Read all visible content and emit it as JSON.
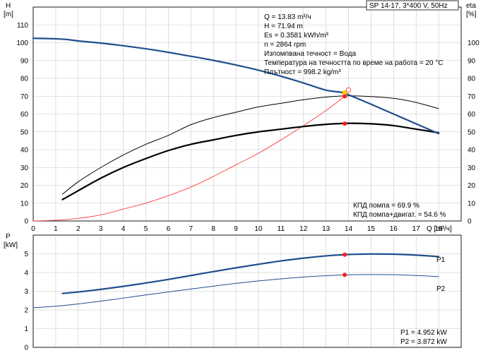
{
  "header": {
    "pump_label": "SP 14-17, 3*400 V, 50Hz"
  },
  "info": {
    "lines": [
      "Q = 13.83 m³/ч",
      "H = 71.94 m",
      "Es = 0.3581 kWh/m³",
      "n = 2864 rpm",
      "Изпомпвана течност = Вода",
      "Температура на течността по време на работа = 20 °C",
      "Плътност = 998.2 kg/m³"
    ]
  },
  "efficiency_notes": {
    "pump": "КПД помпа = 69.9 %",
    "pump_motor": "КПД помпа+двигат. = 54.6 %"
  },
  "power_notes": {
    "p1": "P1 = 4.952 kW",
    "p2": "P2 = 3.872 kW"
  },
  "chart_data": [
    {
      "type": "line",
      "xlabel": "Q [m³/ч]",
      "ylabel": "H\n[m]",
      "y2label": "eta\n[%]",
      "xlim": [
        0,
        19
      ],
      "ylim": [
        0,
        120
      ],
      "y2lim": [
        0,
        120
      ],
      "xticks": [
        0,
        1,
        2,
        3,
        4,
        5,
        6,
        7,
        8,
        9,
        10,
        11,
        12,
        13,
        14,
        15,
        16,
        17,
        18
      ],
      "yticks": [
        0,
        10,
        20,
        30,
        40,
        50,
        60,
        70,
        80,
        90,
        100,
        110
      ],
      "y2ticks": [
        0,
        10,
        20,
        30,
        40,
        50,
        60,
        70,
        80,
        90,
        100
      ],
      "grid": true,
      "series": [
        {
          "id": "h",
          "axis": "left",
          "color": "#1f4e8c",
          "width": 2.2,
          "x": [
            0,
            1.3,
            2,
            3,
            4,
            5,
            6,
            7,
            8,
            9,
            10,
            11,
            12,
            13,
            13.83,
            14,
            15,
            16,
            17,
            18
          ],
          "y": [
            102.5,
            102,
            101,
            99.8,
            98.3,
            96.6,
            94.6,
            92.4,
            90.1,
            87.5,
            84.6,
            81.2,
            77.4,
            73.4,
            71.94,
            70.8,
            65.5,
            60,
            54.5,
            49
          ]
        },
        {
          "id": "eta-pump",
          "axis": "right",
          "color": "#000000",
          "width": 1,
          "x": [
            1.3,
            2,
            3,
            4,
            5,
            6,
            7,
            8,
            9,
            10,
            11,
            12,
            13,
            14,
            15,
            16,
            17,
            18
          ],
          "y": [
            15,
            22,
            30,
            37,
            43,
            48,
            54,
            58,
            61,
            64,
            66,
            68,
            69.5,
            70.2,
            69.8,
            68.8,
            66.5,
            63
          ]
        },
        {
          "id": "eta-total",
          "axis": "right",
          "color": "#000000",
          "width": 2.2,
          "x": [
            1.3,
            2,
            3,
            4,
            5,
            6,
            7,
            8,
            9,
            10,
            11,
            12,
            13,
            14,
            15,
            16,
            17,
            18
          ],
          "y": [
            12,
            17,
            24,
            30,
            35,
            39.5,
            43,
            45.5,
            48,
            50,
            51.5,
            53,
            54.2,
            54.8,
            54.5,
            53.5,
            51.5,
            49.5
          ]
        },
        {
          "id": "system",
          "axis": "left",
          "color": "#ff2020",
          "width": 0.8,
          "x": [
            0,
            1,
            2,
            3,
            4,
            5,
            6,
            7,
            8,
            9,
            10,
            11,
            12,
            13,
            13.83
          ],
          "y": [
            0,
            0.4,
            1.5,
            3.4,
            6.7,
            10,
            14.2,
            19,
            25,
            31.5,
            38,
            45.5,
            53.5,
            62,
            70
          ]
        }
      ],
      "operating_point": {
        "x": 13.83,
        "h": 71.94,
        "eta_pump": 69.9,
        "eta_total": 54.6
      },
      "hollow_point": {
        "x": 14.0,
        "h": 73.5
      }
    },
    {
      "type": "line",
      "xlabel": "",
      "ylabel": "P\n[kW]",
      "xlim": [
        0,
        19
      ],
      "ylim": [
        0,
        6
      ],
      "yticks": [
        0,
        1,
        2,
        3,
        4,
        5
      ],
      "grid": true,
      "series": [
        {
          "id": "p1",
          "name": "P1",
          "color": "#1f4e8c",
          "width": 2.2,
          "x": [
            1.3,
            2,
            3,
            4,
            5,
            6,
            7,
            8,
            9,
            10,
            11,
            12,
            13,
            13.83,
            15,
            16,
            17,
            18
          ],
          "y": [
            2.88,
            2.96,
            3.1,
            3.26,
            3.44,
            3.63,
            3.84,
            4.05,
            4.25,
            4.44,
            4.62,
            4.77,
            4.89,
            4.952,
            4.99,
            4.98,
            4.93,
            4.85
          ]
        },
        {
          "id": "p2",
          "name": "P2",
          "color": "#1f4e8c",
          "width": 1,
          "x": [
            0,
            1,
            2,
            3,
            4,
            5,
            6,
            7,
            8,
            9,
            10,
            11,
            12,
            13,
            13.83,
            15,
            16,
            17,
            18
          ],
          "y": [
            2.12,
            2.2,
            2.32,
            2.47,
            2.63,
            2.8,
            2.96,
            3.12,
            3.27,
            3.42,
            3.55,
            3.66,
            3.76,
            3.83,
            3.872,
            3.89,
            3.88,
            3.84,
            3.78
          ]
        }
      ],
      "operating_point": {
        "x": 13.83,
        "p1": 4.952,
        "p2": 3.872
      }
    }
  ]
}
